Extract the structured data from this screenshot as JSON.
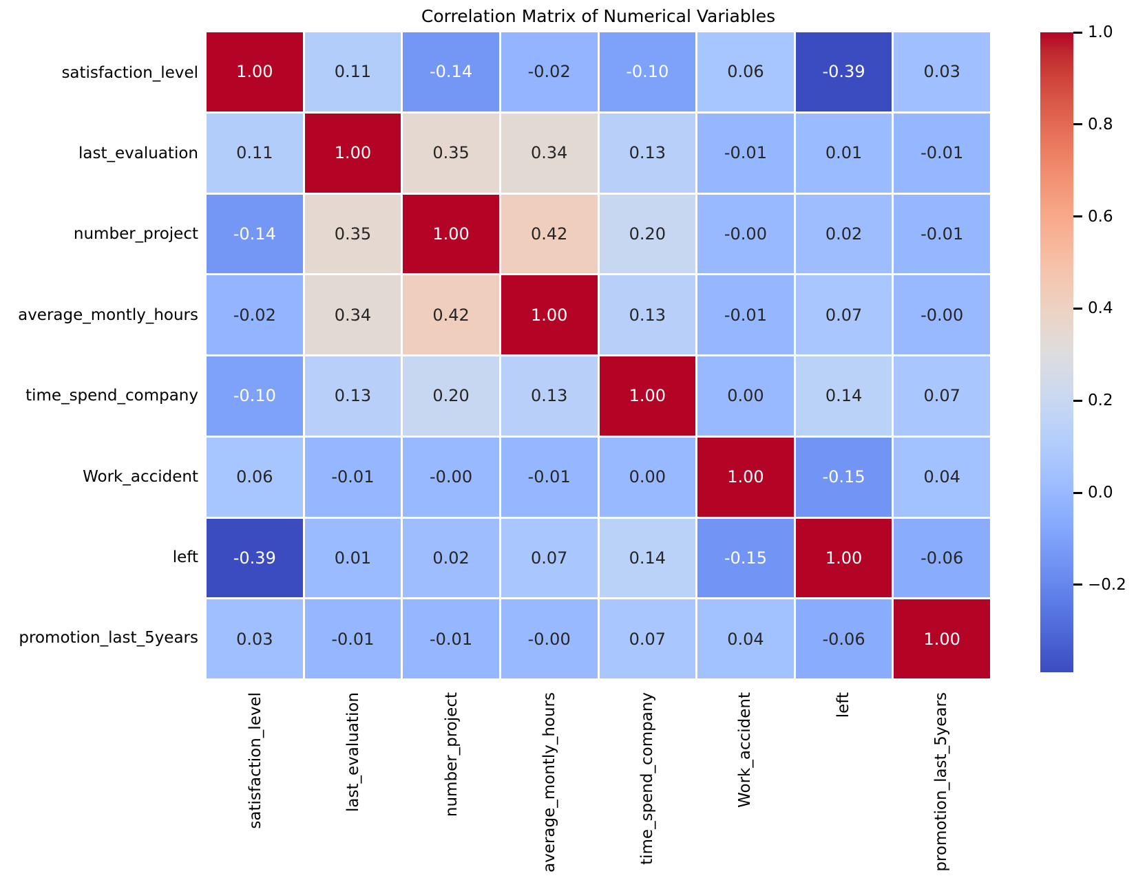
{
  "title": "Correlation Matrix of Numerical Variables",
  "chart_data": {
    "type": "heatmap",
    "title": "Correlation Matrix of Numerical Variables",
    "variables": [
      "satisfaction_level",
      "last_evaluation",
      "number_project",
      "average_montly_hours",
      "time_spend_company",
      "Work_accident",
      "left",
      "promotion_last_5years"
    ],
    "matrix": [
      [
        "1.00",
        "0.11",
        "-0.14",
        "-0.02",
        "-0.10",
        "0.06",
        "-0.39",
        "0.03"
      ],
      [
        "0.11",
        "1.00",
        "0.35",
        "0.34",
        "0.13",
        "-0.01",
        "0.01",
        "-0.01"
      ],
      [
        "-0.14",
        "0.35",
        "1.00",
        "0.42",
        "0.20",
        "-0.00",
        "0.02",
        "-0.01"
      ],
      [
        "-0.02",
        "0.34",
        "0.42",
        "1.00",
        "0.13",
        "-0.01",
        "0.07",
        "-0.00"
      ],
      [
        "-0.10",
        "0.13",
        "0.20",
        "0.13",
        "1.00",
        "0.00",
        "0.14",
        "0.07"
      ],
      [
        "0.06",
        "-0.01",
        "-0.00",
        "-0.01",
        "0.00",
        "1.00",
        "-0.15",
        "0.04"
      ],
      [
        "-0.39",
        "0.01",
        "0.02",
        "0.07",
        "0.14",
        "-0.15",
        "1.00",
        "-0.06"
      ],
      [
        "0.03",
        "-0.01",
        "-0.01",
        "-0.00",
        "0.07",
        "0.04",
        "-0.06",
        "1.00"
      ]
    ],
    "vmin": -0.39,
    "vmax": 1.0,
    "grid_line_color": "#ffffff",
    "annotation_dark_color": "#262626",
    "annotation_light_color": "#ffffff",
    "legend_position": "right",
    "colorbar_ticks": [
      "1.0",
      "0.8",
      "0.6",
      "0.4",
      "0.2",
      "0.0",
      "−0.2"
    ],
    "colormap": {
      "name": "coolwarm",
      "anchors": [
        [
          59,
          76,
          192
        ],
        [
          68,
          90,
          204
        ],
        [
          77,
          104,
          215
        ],
        [
          87,
          117,
          225
        ],
        [
          98,
          130,
          234
        ],
        [
          108,
          142,
          241
        ],
        [
          119,
          154,
          247
        ],
        [
          130,
          165,
          251
        ],
        [
          141,
          176,
          254
        ],
        [
          152,
          185,
          255
        ],
        [
          163,
          194,
          255
        ],
        [
          174,
          201,
          253
        ],
        [
          184,
          208,
          249
        ],
        [
          194,
          213,
          244
        ],
        [
          204,
          217,
          238
        ],
        [
          213,
          219,
          230
        ],
        [
          221,
          221,
          221
        ],
        [
          229,
          216,
          209
        ],
        [
          236,
          211,
          197
        ],
        [
          241,
          204,
          185
        ],
        [
          245,
          196,
          173
        ],
        [
          247,
          187,
          160
        ],
        [
          247,
          177,
          148
        ],
        [
          247,
          166,
          135
        ],
        [
          244,
          154,
          123
        ],
        [
          241,
          141,
          111
        ],
        [
          236,
          127,
          99
        ],
        [
          229,
          112,
          88
        ],
        [
          222,
          96,
          77
        ],
        [
          213,
          80,
          66
        ],
        [
          203,
          62,
          56
        ],
        [
          192,
          40,
          47
        ],
        [
          180,
          4,
          38
        ]
      ]
    }
  }
}
